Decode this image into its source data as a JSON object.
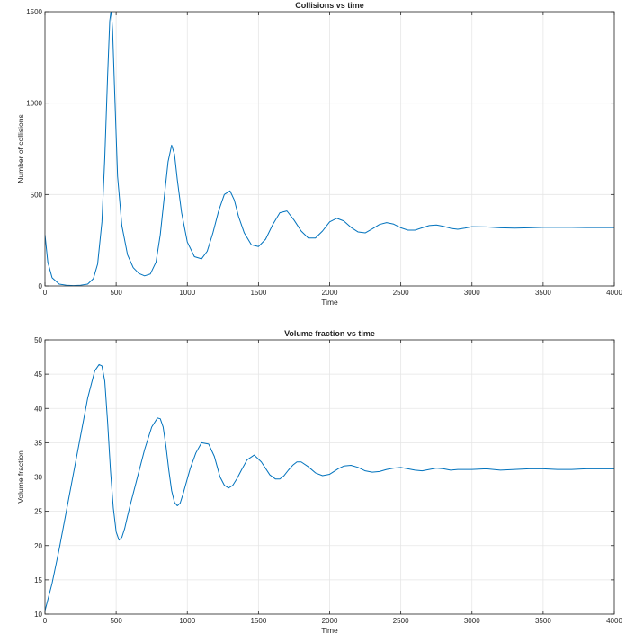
{
  "chart_data": [
    {
      "type": "line",
      "title": "Collisions vs time",
      "xlabel": "Time",
      "ylabel": "Number of collisions",
      "xlim": [
        0,
        4000
      ],
      "ylim": [
        0,
        1500
      ],
      "xticks": [
        0,
        500,
        1000,
        1500,
        2000,
        2500,
        3000,
        3500,
        4000
      ],
      "yticks": [
        0,
        500,
        1000,
        1500
      ],
      "grid": true,
      "line_color": "#0072BD",
      "series": [
        {
          "x": [
            0,
            20,
            50,
            100,
            150,
            200,
            250,
            300,
            340,
            370,
            400,
            420,
            440,
            455,
            465,
            475,
            490,
            510,
            540,
            580,
            620,
            660,
            700,
            740,
            780,
            810,
            840,
            865,
            890,
            910,
            930,
            960,
            1000,
            1050,
            1100,
            1140,
            1180,
            1220,
            1260,
            1300,
            1330,
            1360,
            1400,
            1450,
            1500,
            1550,
            1600,
            1650,
            1700,
            1750,
            1800,
            1850,
            1900,
            1950,
            2000,
            2050,
            2100,
            2150,
            2200,
            2250,
            2300,
            2350,
            2400,
            2450,
            2500,
            2550,
            2600,
            2650,
            2700,
            2750,
            2800,
            2850,
            2900,
            2950,
            3000,
            3100,
            3200,
            3300,
            3400,
            3500,
            3600,
            3700,
            3800,
            3900,
            4000
          ],
          "y": [
            280,
            130,
            45,
            10,
            4,
            2,
            4,
            10,
            40,
            120,
            350,
            700,
            1150,
            1450,
            1510,
            1400,
            1050,
            600,
            330,
            170,
            100,
            68,
            55,
            65,
            130,
            280,
            500,
            680,
            770,
            720,
            580,
            400,
            240,
            160,
            148,
            190,
            290,
            410,
            500,
            520,
            470,
            380,
            290,
            225,
            215,
            255,
            335,
            400,
            410,
            360,
            300,
            262,
            262,
            300,
            350,
            370,
            355,
            320,
            295,
            290,
            312,
            336,
            346,
            338,
            318,
            305,
            305,
            318,
            330,
            333,
            326,
            315,
            310,
            316,
            324,
            323,
            318,
            316,
            318,
            320,
            321,
            320,
            319,
            319,
            319
          ]
        }
      ]
    },
    {
      "type": "line",
      "title": "Volume fraction vs time",
      "xlabel": "Time",
      "ylabel": "Volume fraction",
      "xlim": [
        0,
        4000
      ],
      "ylim": [
        10,
        50
      ],
      "xticks": [
        0,
        500,
        1000,
        1500,
        2000,
        2500,
        3000,
        3500,
        4000
      ],
      "yticks": [
        10,
        15,
        20,
        25,
        30,
        35,
        40,
        45,
        50
      ],
      "grid": true,
      "line_color": "#0072BD",
      "series": [
        {
          "x": [
            0,
            50,
            100,
            150,
            200,
            250,
            300,
            350,
            380,
            400,
            420,
            440,
            460,
            480,
            500,
            520,
            540,
            560,
            580,
            600,
            650,
            700,
            750,
            790,
            810,
            830,
            850,
            870,
            890,
            910,
            930,
            950,
            970,
            990,
            1020,
            1060,
            1100,
            1150,
            1190,
            1210,
            1230,
            1260,
            1290,
            1320,
            1350,
            1380,
            1420,
            1470,
            1520,
            1580,
            1620,
            1650,
            1680,
            1710,
            1740,
            1770,
            1800,
            1850,
            1900,
            1950,
            2000,
            2030,
            2060,
            2100,
            2150,
            2200,
            2250,
            2300,
            2350,
            2400,
            2450,
            2500,
            2550,
            2600,
            2650,
            2700,
            2750,
            2800,
            2850,
            2900,
            3000,
            3100,
            3200,
            3300,
            3400,
            3500,
            3600,
            3700,
            3800,
            3900,
            4000
          ],
          "y": [
            10.5,
            14.5,
            19.5,
            25,
            30.5,
            36,
            41.5,
            45.5,
            46.4,
            46.2,
            44,
            38,
            31,
            25.5,
            22,
            20.8,
            21.2,
            22.5,
            24.3,
            26,
            30,
            34,
            37.3,
            38.6,
            38.5,
            37.3,
            34.5,
            31,
            28,
            26.3,
            25.8,
            26.2,
            27.5,
            29,
            31.2,
            33.5,
            35,
            34.8,
            33,
            31.5,
            30,
            28.8,
            28.4,
            28.8,
            29.8,
            31,
            32.5,
            33.2,
            32.2,
            30.3,
            29.7,
            29.7,
            30.2,
            31,
            31.7,
            32.2,
            32.2,
            31.5,
            30.6,
            30.2,
            30.4,
            30.8,
            31.2,
            31.6,
            31.7,
            31.4,
            30.9,
            30.7,
            30.8,
            31.1,
            31.3,
            31.4,
            31.2,
            31,
            30.9,
            31.1,
            31.3,
            31.2,
            31,
            31.1,
            31.1,
            31.2,
            31,
            31.1,
            31.2,
            31.2,
            31.1,
            31.1,
            31.2,
            31.2,
            31.2
          ]
        }
      ]
    }
  ]
}
